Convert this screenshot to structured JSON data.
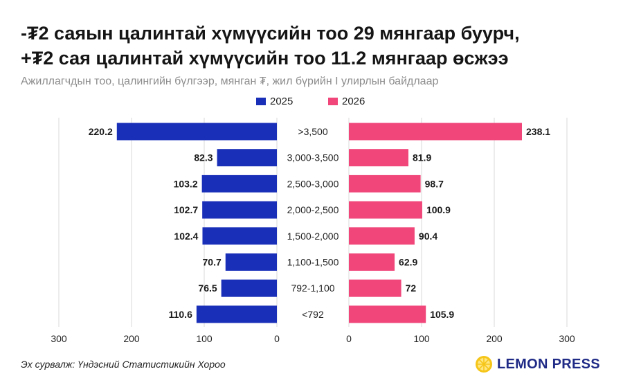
{
  "header": {
    "title_line1": "-₮2 саяын цалинтай хүмүүсийн тоо 29 мянгаар буурч,",
    "title_line2": "+₮2 сая цалинтай хүмүүсийн тоо 11.2 мянгаар өсжээ",
    "subtitle": "Ажиллагчдын тоо, цалингийн бүлгээр, мянган ₮, жил бүрийн I улирлын байдлаар"
  },
  "footer": {
    "source": "Эх сурвалж: Үндэсний Статистикийн Хороо",
    "brand": "LEMON PRESS",
    "brand_icon": "lemon-slice-icon"
  },
  "colors": {
    "left": "#1a2fb8",
    "right": "#f0467a",
    "grid": "#d9d9d9",
    "brand": "#1f2a86",
    "logo": "#f5c518"
  },
  "chart_data": {
    "type": "bar",
    "layout": "back-to-back horizontal",
    "categories": [
      ">3,500",
      "3,000-3,500",
      "2,500-3,000",
      "2,000-2,500",
      "1,500-2,000",
      "1,100-1,500",
      "792-1,100",
      "<792"
    ],
    "series": [
      {
        "name": "2025",
        "values": [
          220.2,
          82.3,
          103.2,
          102.7,
          102.4,
          70.7,
          76.5,
          110.6
        ]
      },
      {
        "name": "2026",
        "values": [
          238.1,
          81.9,
          98.7,
          100.9,
          90.4,
          62.9,
          72,
          105.9
        ]
      }
    ],
    "xlim": [
      0,
      300
    ],
    "ticks": [
      300,
      200,
      100,
      0
    ],
    "ticks_right": [
      0,
      100,
      200,
      300
    ],
    "grid": true,
    "legend_position": "top-center"
  }
}
